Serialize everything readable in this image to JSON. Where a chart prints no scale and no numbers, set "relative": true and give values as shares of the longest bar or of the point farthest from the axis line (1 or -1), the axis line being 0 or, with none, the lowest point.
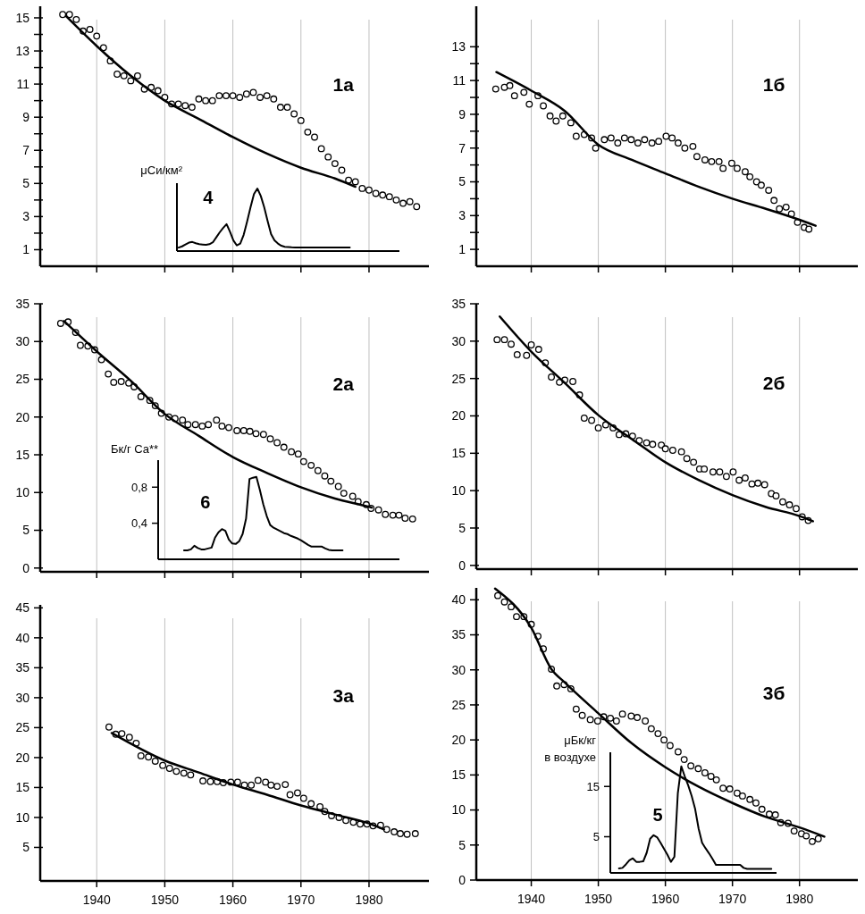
{
  "chart_data": [
    {
      "type": "scatter",
      "title": "1а",
      "xlim": [
        1931.7,
        1988.8
      ],
      "xticks": [
        1940,
        1950,
        1960,
        1970,
        1980
      ],
      "ylim": [
        0,
        15.7
      ],
      "yticks": [
        1,
        {
          "value": 2,
          "label": null
        },
        3,
        {
          "value": 4,
          "label": null
        },
        5,
        {
          "value": 6,
          "label": null
        },
        7,
        {
          "value": 8,
          "label": null
        },
        9,
        {
          "value": 10,
          "label": null
        },
        11,
        {
          "value": 12,
          "label": null
        },
        13,
        {
          "value": 14,
          "label": null
        },
        15
      ],
      "grid": "x",
      "tick_labels": "y",
      "marker": "circle",
      "series": [
        {
          "type": "scatter",
          "color": "#000000",
          "x": [
            1935,
            1936,
            1937,
            1938,
            1939,
            1940,
            1941,
            1942,
            1943,
            1944,
            1945,
            1946,
            1947,
            1948,
            1949,
            1950,
            1951,
            1952,
            1953,
            1954,
            1955,
            1956,
            1957,
            1958,
            1959,
            1960,
            1961,
            1962,
            1963,
            1964,
            1965,
            1966,
            1967,
            1968,
            1969,
            1970,
            1971,
            1972,
            1973,
            1974,
            1975,
            1976,
            1977,
            1978,
            1979,
            1980,
            1981,
            1982,
            1983,
            1984,
            1985,
            1986,
            1987
          ],
          "values": [
            15.2,
            15.2,
            14.9,
            14.2,
            14.3,
            13.9,
            13.2,
            12.4,
            11.6,
            11.5,
            11.2,
            11.5,
            10.7,
            10.8,
            10.6,
            10.2,
            9.8,
            9.8,
            9.7,
            9.6,
            10.1,
            10.0,
            10.0,
            10.3,
            10.3,
            10.3,
            10.2,
            10.4,
            10.5,
            10.2,
            10.3,
            10.1,
            9.6,
            9.6,
            9.2,
            8.8,
            8.1,
            7.8,
            7.1,
            6.6,
            6.2,
            5.8,
            5.2,
            5.1,
            4.7,
            4.6,
            4.4,
            4.3,
            4.2,
            4.0,
            3.8,
            3.9,
            3.6
          ]
        },
        {
          "type": "line",
          "marker": "none",
          "color": "#000000",
          "x": [
            1935.5,
            1940,
            1945,
            1950,
            1955,
            1960,
            1965,
            1970,
            1975,
            1978
          ],
          "values": [
            15.1,
            13.3,
            11.5,
            10.0,
            8.9,
            7.8,
            6.8,
            5.95,
            5.3,
            4.8
          ]
        }
      ]
    },
    {
      "type": "line",
      "title": "4",
      "ylabel": "μCи/км²",
      "relative": true,
      "tick_labels": false,
      "categories": [
        null,
        null,
        null,
        null,
        null,
        null,
        null,
        null,
        null,
        null,
        null,
        null,
        null,
        null,
        null,
        null,
        null,
        null,
        null,
        null,
        null,
        null,
        null,
        null,
        null,
        null,
        null,
        null,
        null,
        null,
        null,
        null,
        null,
        null,
        null,
        null,
        null,
        null,
        null,
        null,
        null,
        null,
        null,
        null,
        null,
        null,
        null,
        null,
        null,
        null,
        null,
        null,
        null,
        null,
        null,
        null,
        null,
        null,
        null,
        null,
        null,
        null,
        null,
        null,
        null
      ],
      "series": [
        {
          "color": "#000000",
          "values": [
            0.055,
            0.075,
            0.105,
            0.135,
            0.145,
            0.125,
            0.11,
            0.105,
            0.1,
            0.11,
            0.14,
            0.22,
            0.3,
            0.37,
            0.43,
            0.31,
            0.17,
            0.09,
            0.12,
            0.26,
            0.47,
            0.7,
            0.91,
            1,
            0.88,
            0.7,
            0.48,
            0.27,
            0.17,
            0.12,
            0.085,
            0.068,
            0.064,
            0.06,
            0.058,
            0.058,
            0.058,
            0.058,
            0.058,
            0.058,
            0.058,
            0.058,
            0.058,
            0.058,
            0.058,
            0.058,
            0.058,
            0.058,
            0.058,
            0.058,
            0.058,
            null,
            null,
            null,
            null,
            null,
            null,
            null,
            null,
            null,
            null,
            null,
            null,
            null,
            null
          ]
        }
      ]
    },
    {
      "type": "scatter",
      "title": "1б",
      "xlim": [
        1931.8,
        1988.7
      ],
      "xticks": [
        1940,
        1950,
        1960,
        1970,
        1980
      ],
      "ylim": [
        0,
        15.4
      ],
      "yticks": [
        1,
        {
          "value": 2,
          "label": null
        },
        3,
        {
          "value": 4,
          "label": null
        },
        5,
        {
          "value": 6,
          "label": null
        },
        7,
        {
          "value": 8,
          "label": null
        },
        9,
        {
          "value": 10,
          "label": null
        },
        11,
        {
          "value": 12,
          "label": null
        },
        13
      ],
      "grid": "x",
      "tick_labels": "y",
      "marker": "circle",
      "series": [
        {
          "type": "scatter",
          "color": "#000000",
          "x": [
            1934.7,
            1936.0,
            1936.8,
            1937.5,
            1938.9,
            1939.7,
            1941.0,
            1941.8,
            1942.8,
            1943.7,
            1944.7,
            1945.9,
            1946.7,
            1947.9,
            1949.0,
            1949.6,
            1950.9,
            1951.9,
            1952.9,
            1953.9,
            1954.9,
            1955.9,
            1956.9,
            1958.0,
            1959.0,
            1960.1,
            1961.0,
            1961.9,
            1962.9,
            1964.1,
            1964.7,
            1965.9,
            1966.9,
            1968.0,
            1968.6,
            1969.9,
            1970.7,
            1971.9,
            1972.6,
            1973.6,
            1974.3,
            1975.4,
            1976.2,
            1977.0,
            1978.0,
            1978.8,
            1979.7,
            1980.7,
            1981.4
          ],
          "values": [
            10.5,
            10.6,
            10.7,
            10.1,
            10.3,
            9.6,
            10.1,
            9.5,
            8.9,
            8.6,
            8.9,
            8.5,
            7.7,
            7.8,
            7.6,
            7.0,
            7.5,
            7.6,
            7.3,
            7.6,
            7.5,
            7.3,
            7.5,
            7.3,
            7.4,
            7.7,
            7.6,
            7.3,
            7.0,
            7.1,
            6.5,
            6.3,
            6.2,
            6.2,
            5.8,
            6.1,
            5.8,
            5.6,
            5.3,
            5.0,
            4.8,
            4.5,
            3.9,
            3.4,
            3.5,
            3.1,
            2.6,
            2.3,
            2.2
          ]
        },
        {
          "type": "line",
          "marker": "none",
          "color": "#000000",
          "x": [
            1934.8,
            1940,
            1945,
            1950,
            1955,
            1960,
            1965,
            1970,
            1975,
            1980,
            1982.4
          ],
          "values": [
            11.5,
            10.4,
            9.2,
            7.2,
            6.3,
            5.5,
            4.7,
            4.0,
            3.4,
            2.75,
            2.4
          ]
        }
      ]
    },
    {
      "type": "scatter",
      "title": "2а",
      "xlim": [
        1931.7,
        1988.8
      ],
      "xticks": [
        1940,
        1950,
        1960,
        1970,
        1980
      ],
      "ylim": [
        -0.5,
        35
      ],
      "yticks": [
        0,
        5,
        10,
        15,
        20,
        25,
        30,
        35
      ],
      "grid": "x",
      "tick_labels": "y",
      "marker": "circle",
      "series": [
        {
          "type": "scatter",
          "color": "#000000",
          "x": [
            1934.7,
            1935.8,
            1936.9,
            1937.6,
            1938.7,
            1939.7,
            1940.7,
            1941.7,
            1942.5,
            1943.6,
            1944.7,
            1945.5,
            1946.5,
            1947.8,
            1948.6,
            1949.5,
            1950.6,
            1951.5,
            1952.6,
            1953.4,
            1954.5,
            1955.5,
            1956.4,
            1957.6,
            1958.4,
            1959.4,
            1960.6,
            1961.6,
            1962.5,
            1963.4,
            1964.5,
            1965.5,
            1966.5,
            1967.5,
            1968.6,
            1969.6,
            1970.4,
            1971.5,
            1972.5,
            1973.5,
            1974.4,
            1975.5,
            1976.3,
            1977.6,
            1978.4,
            1979.6,
            1980.3,
            1981.4,
            1982.4,
            1983.5,
            1984.4,
            1985.3,
            1986.4
          ],
          "values": [
            32.4,
            32.6,
            31.2,
            29.5,
            29.4,
            28.9,
            27.6,
            25.7,
            24.6,
            24.7,
            24.5,
            24.0,
            22.7,
            22.2,
            21.5,
            20.5,
            20.0,
            19.8,
            19.6,
            19.0,
            19.0,
            18.8,
            19.0,
            19.6,
            18.8,
            18.6,
            18.2,
            18.2,
            18.1,
            17.8,
            17.7,
            17.1,
            16.6,
            16.0,
            15.4,
            15.1,
            14.1,
            13.6,
            12.9,
            12.2,
            11.5,
            10.8,
            9.9,
            9.5,
            8.8,
            8.4,
            7.9,
            7.7,
            7.1,
            7.0,
            7.0,
            6.6,
            6.5
          ]
        },
        {
          "type": "line",
          "marker": "none",
          "color": "#000000",
          "x": [
            1935.2,
            1940,
            1945,
            1950,
            1955,
            1960,
            1965,
            1970,
            1975,
            1980,
            1980.4
          ],
          "values": [
            32.7,
            28.7,
            24.8,
            20.4,
            17.5,
            14.7,
            12.6,
            10.7,
            9.2,
            8.1,
            8.0
          ]
        }
      ]
    },
    {
      "type": "line",
      "title": "6",
      "ylabel": "Бк/г Ca**",
      "categories": [
        null,
        null,
        null,
        null,
        null,
        null,
        null,
        null,
        null,
        null,
        null,
        null,
        null,
        null,
        null,
        null,
        null,
        null,
        null,
        null,
        null,
        null,
        null,
        null,
        null,
        null,
        null,
        null,
        null,
        null,
        null,
        null,
        null,
        null,
        null,
        null,
        null,
        null,
        null,
        null,
        null,
        null,
        null,
        null,
        null,
        null,
        null,
        null,
        null,
        null,
        null,
        null,
        null,
        null,
        null,
        null,
        null,
        null,
        null,
        null,
        null,
        null,
        null,
        null,
        null,
        null,
        null,
        null,
        null,
        null
      ],
      "ylim": [
        0,
        1.1
      ],
      "yticks": [
        {
          "value": 0.4,
          "label": "0,4"
        },
        {
          "value": 0.8,
          "label": "0,8"
        }
      ],
      "tick_labels": "y",
      "series": [
        {
          "color": "#000000",
          "values": [
            null,
            null,
            null,
            null,
            null,
            null,
            null,
            0.1,
            0.1,
            0.11,
            0.15,
            0.125,
            0.11,
            0.11,
            0.12,
            0.13,
            0.24,
            0.3,
            0.335,
            0.315,
            0.22,
            0.175,
            0.17,
            0.2,
            0.28,
            0.45,
            0.89,
            0.905,
            0.915,
            0.77,
            0.61,
            0.48,
            0.38,
            0.35,
            0.33,
            0.31,
            0.29,
            0.28,
            0.26,
            0.245,
            0.23,
            0.21,
            0.185,
            0.16,
            0.14,
            0.14,
            0.14,
            0.14,
            0.12,
            0.105,
            0.1,
            0.1,
            0.1,
            0.1,
            null,
            null,
            null,
            null,
            null,
            null,
            null,
            null,
            null,
            null,
            null,
            null,
            null,
            null,
            null,
            null
          ]
        }
      ]
    },
    {
      "type": "scatter",
      "title": "2б",
      "xlim": [
        1931.8,
        1988.7
      ],
      "xticks": [
        1940,
        1950,
        1960,
        1970,
        1980
      ],
      "ylim": [
        -0.5,
        35
      ],
      "yticks": [
        0,
        5,
        10,
        15,
        20,
        25,
        30,
        35
      ],
      "grid": "x",
      "tick_labels": "y",
      "marker": "circle",
      "series": [
        {
          "type": "scatter",
          "color": "#000000",
          "x": [
            1934.9,
            1936.0,
            1937.0,
            1937.9,
            1939.3,
            1940.0,
            1941.1,
            1942.1,
            1943.0,
            1944.2,
            1945.0,
            1946.2,
            1947.2,
            1947.9,
            1949.0,
            1950.0,
            1951.1,
            1952.2,
            1953.1,
            1954.1,
            1955.1,
            1956.1,
            1957.2,
            1958.1,
            1959.4,
            1960.0,
            1961.1,
            1962.4,
            1963.2,
            1964.2,
            1965.1,
            1965.8,
            1967.1,
            1968.1,
            1969.1,
            1970.1,
            1971.0,
            1971.9,
            1972.9,
            1973.8,
            1974.8,
            1975.8,
            1976.5,
            1977.5,
            1978.5,
            1979.5,
            1980.4,
            1981.3
          ],
          "values": [
            30.2,
            30.2,
            29.6,
            28.2,
            28.1,
            29.5,
            28.9,
            27.1,
            25.2,
            24.5,
            24.8,
            24.6,
            22.8,
            19.7,
            19.4,
            18.4,
            18.8,
            18.4,
            17.5,
            17.6,
            17.3,
            16.7,
            16.4,
            16.2,
            16.1,
            15.6,
            15.4,
            15.2,
            14.3,
            13.8,
            12.9,
            12.9,
            12.5,
            12.5,
            11.9,
            12.5,
            11.4,
            11.7,
            10.9,
            11.0,
            10.8,
            9.6,
            9.3,
            8.5,
            8.1,
            7.6,
            6.5,
            6.0
          ]
        },
        {
          "type": "line",
          "marker": "none",
          "color": "#000000",
          "x": [
            1935.3,
            1940,
            1945,
            1950,
            1955,
            1960,
            1965,
            1970,
            1975,
            1980,
            1982.0
          ],
          "values": [
            33.3,
            28.6,
            24.4,
            20.1,
            16.9,
            13.8,
            11.4,
            9.4,
            7.8,
            6.6,
            5.9
          ]
        }
      ]
    },
    {
      "type": "scatter",
      "title": "3а",
      "xlim": [
        1931.7,
        1988.8
      ],
      "xticks": [
        1940,
        1950,
        1960,
        1970,
        1980
      ],
      "ylim": [
        -0.6,
        45.5
      ],
      "yticks": [
        5,
        10,
        15,
        20,
        25,
        30,
        35,
        40,
        45
      ],
      "grid": "x",
      "marker": "circle",
      "series": [
        {
          "type": "scatter",
          "color": "#000000",
          "x": [
            1941.8,
            1942.8,
            1943.7,
            1944.8,
            1945.8,
            1946.5,
            1947.6,
            1948.6,
            1949.7,
            1950.7,
            1951.7,
            1952.8,
            1953.8,
            1955.6,
            1956.7,
            1957.7,
            1958.6,
            1959.7,
            1960.7,
            1961.7,
            1962.7,
            1963.7,
            1964.8,
            1965.6,
            1966.5,
            1967.7,
            1968.4,
            1969.5,
            1970.4,
            1971.5,
            1972.8,
            1973.5,
            1974.5,
            1975.6,
            1976.6,
            1977.7,
            1978.7,
            1979.7,
            1980.6,
            1981.7,
            1982.6,
            1983.7,
            1984.6,
            1985.6,
            1986.8
          ],
          "values": [
            25.1,
            23.9,
            24.0,
            23.4,
            22.4,
            20.3,
            20.1,
            19.4,
            18.7,
            18.2,
            17.7,
            17.4,
            17.1,
            16.1,
            16.0,
            16.0,
            15.8,
            15.9,
            15.9,
            15.4,
            15.4,
            16.2,
            15.9,
            15.4,
            15.2,
            15.5,
            13.8,
            14.1,
            13.2,
            12.3,
            11.8,
            11.0,
            10.3,
            10.0,
            9.5,
            9.2,
            8.9,
            8.9,
            8.6,
            8.7,
            8.0,
            7.6,
            7.3,
            7.2,
            7.3
          ]
        },
        {
          "type": "line",
          "marker": "none",
          "color": "#000000",
          "x": [
            1942.2,
            1950,
            1955,
            1960,
            1965,
            1970,
            1975,
            1980,
            1982.2
          ],
          "values": [
            24.1,
            19.5,
            17.5,
            15.5,
            13.8,
            12.0,
            10.5,
            9.0,
            8.0
          ]
        }
      ]
    },
    {
      "type": "scatter",
      "title": "3б",
      "xlim": [
        1931.8,
        1988.7
      ],
      "xticks": [
        1940,
        1950,
        1960,
        1970,
        1980
      ],
      "ylim": [
        0,
        41.7
      ],
      "yticks": [
        0,
        5,
        10,
        15,
        20,
        25,
        30,
        35,
        40
      ],
      "grid": "x",
      "marker": "circle",
      "series": [
        {
          "type": "scatter",
          "color": "#000000",
          "x": [
            1935.0,
            1936.0,
            1937.0,
            1937.8,
            1938.9,
            1940.0,
            1941.0,
            1941.8,
            1943.0,
            1943.8,
            1944.9,
            1945.9,
            1946.7,
            1947.6,
            1948.8,
            1949.9,
            1950.8,
            1951.8,
            1952.7,
            1953.6,
            1954.9,
            1955.8,
            1957.0,
            1957.9,
            1958.9,
            1959.8,
            1960.7,
            1961.9,
            1962.8,
            1963.8,
            1964.9,
            1965.9,
            1966.8,
            1967.6,
            1968.6,
            1969.6,
            1970.7,
            1971.5,
            1972.6,
            1973.5,
            1974.4,
            1975.5,
            1976.4,
            1977.2,
            1978.3,
            1979.2,
            1980.3,
            1981.0,
            1981.9,
            1982.8
          ],
          "values": [
            40.6,
            39.7,
            39.0,
            37.6,
            37.6,
            36.5,
            34.8,
            33.0,
            30.1,
            27.7,
            27.9,
            27.3,
            24.4,
            23.5,
            22.9,
            22.7,
            23.3,
            23.1,
            22.7,
            23.7,
            23.4,
            23.2,
            22.7,
            21.6,
            20.9,
            20.0,
            19.2,
            18.3,
            17.2,
            16.3,
            15.9,
            15.3,
            14.8,
            14.3,
            13.1,
            13.0,
            12.4,
            12.0,
            11.5,
            11.0,
            10.1,
            9.4,
            9.3,
            8.2,
            8.1,
            7.0,
            6.6,
            6.3,
            5.5,
            5.9
          ]
        },
        {
          "type": "line",
          "marker": "none",
          "color": "#000000",
          "x": [
            1934.6,
            1940,
            1943,
            1945,
            1950,
            1955,
            1960,
            1965,
            1970,
            1975,
            1980,
            1983.7
          ],
          "values": [
            41.6,
            36.0,
            30.1,
            28.2,
            23.8,
            19.5,
            16.1,
            13.3,
            11.0,
            9.0,
            7.5,
            6.2
          ]
        }
      ]
    },
    {
      "type": "line",
      "title": "5",
      "ylabel": "μБк/кг\nв воздухе",
      "categories": [
        null,
        null,
        null,
        null,
        null,
        null,
        null,
        null,
        null,
        null,
        null,
        null,
        null,
        null,
        null,
        null,
        null,
        null,
        null,
        null,
        null,
        null,
        null,
        null,
        null,
        null,
        null,
        null,
        null,
        null,
        null,
        null,
        null,
        null,
        null,
        null,
        null,
        null,
        null,
        null,
        null,
        null,
        null,
        null,
        null,
        null,
        null,
        null
      ],
      "ylim": [
        -2.2,
        21.8
      ],
      "yticks": [
        5,
        15
      ],
      "tick_labels": "y",
      "series": [
        {
          "color": "#000000",
          "values": [
            null,
            null,
            -1.3,
            -1.2,
            -0.5,
            0.3,
            0.7,
            0,
            0,
            0.1,
            1.8,
            4.6,
            5.3,
            4.9,
            3.8,
            2.6,
            1.4,
            0,
            1.0,
            13.7,
            19.0,
            17.0,
            15.2,
            13.1,
            10.5,
            6.6,
            3.8,
            2.7,
            1.7,
            0.6,
            -0.6,
            -0.6,
            -0.6,
            -0.6,
            -0.6,
            -0.6,
            -0.6,
            -0.6,
            -1.2,
            -1.4,
            -1.4,
            -1.4,
            -1.4,
            -1.4,
            -1.4,
            -1.4,
            -1.4,
            null
          ]
        }
      ]
    }
  ]
}
